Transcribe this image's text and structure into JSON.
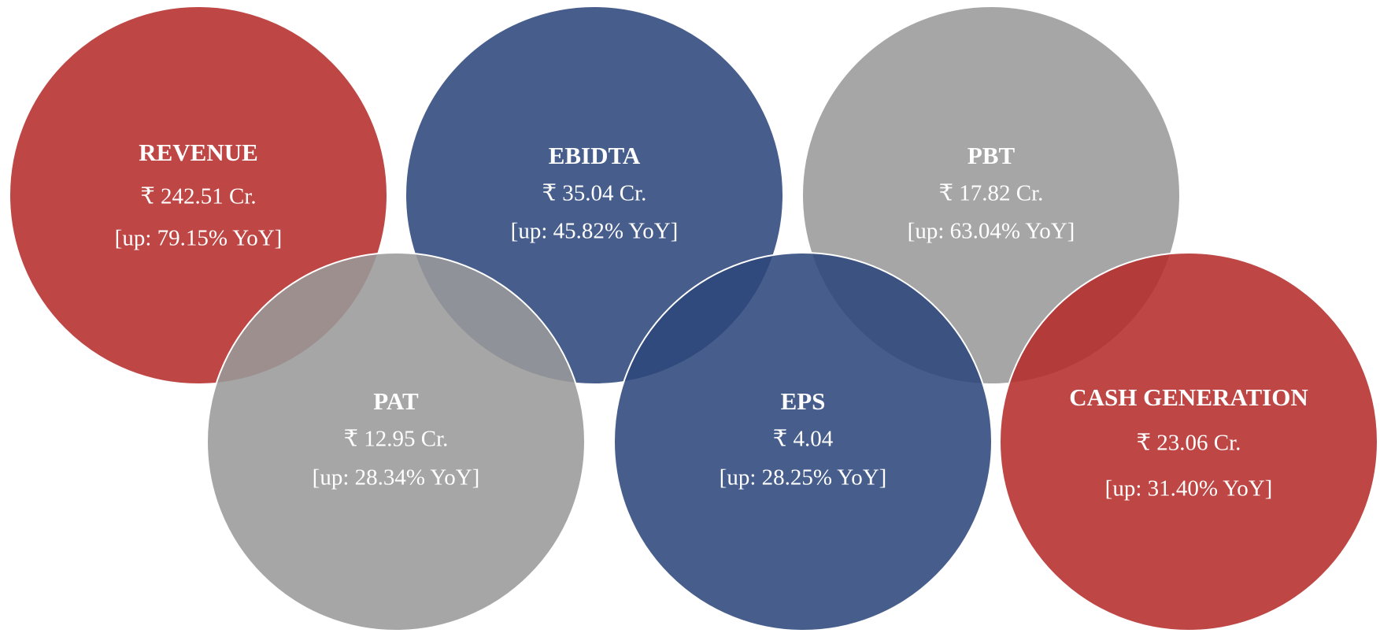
{
  "cards": [
    {
      "title": "REVENUE",
      "value": "₹ 242.51 Cr.",
      "change": "[up: 79.15% YoY]"
    },
    {
      "title": "EBIDTA",
      "value": "₹ 35.04 Cr.",
      "change": "[up: 45.82% YoY]"
    },
    {
      "title": "PBT",
      "value": "₹ 17.82 Cr.",
      "change": "[up: 63.04% YoY]"
    },
    {
      "title": "PAT",
      "value": "₹ 12.95 Cr.",
      "change": "[up: 28.34% YoY]"
    },
    {
      "title": "EPS",
      "value": "₹ 4.04",
      "change": "[up: 28.25% YoY]"
    },
    {
      "title": "CASH GENERATION",
      "value": "₹ 23.06 Cr.",
      "change": "[up: 31.40% YoY]"
    }
  ]
}
